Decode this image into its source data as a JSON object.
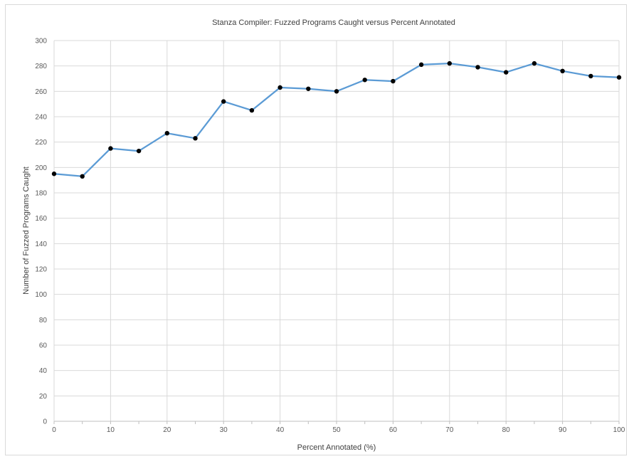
{
  "chart_data": {
    "type": "line",
    "title": "Stanza Compiler:  Fuzzed Programs Caught versus Percent Annotated",
    "xlabel": "Percent Annotated (%)",
    "ylabel": "Number of Fuzzed Programs Caught",
    "xlim": [
      0,
      100
    ],
    "ylim": [
      0,
      300
    ],
    "xticks": [
      0,
      10,
      20,
      30,
      40,
      50,
      60,
      70,
      80,
      90,
      100
    ],
    "yticks": [
      0,
      20,
      40,
      60,
      80,
      100,
      120,
      140,
      160,
      180,
      200,
      220,
      240,
      260,
      280,
      300
    ],
    "grid": true,
    "legend": "none",
    "colors": {
      "line": "#5b9bd5",
      "marker": "#000000",
      "grid": "#d9d9d9",
      "axis": "#bfbfbf"
    },
    "series": [
      {
        "x": [
          0,
          5,
          10,
          15,
          20,
          25,
          30,
          35,
          40,
          45,
          50,
          55,
          60,
          65,
          70,
          75,
          80,
          85,
          90,
          95,
          100
        ],
        "values": [
          195,
          193,
          215,
          213,
          227,
          223,
          252,
          245,
          263,
          262,
          260,
          269,
          268,
          281,
          282,
          279,
          275,
          282,
          276,
          272,
          271
        ]
      }
    ]
  }
}
